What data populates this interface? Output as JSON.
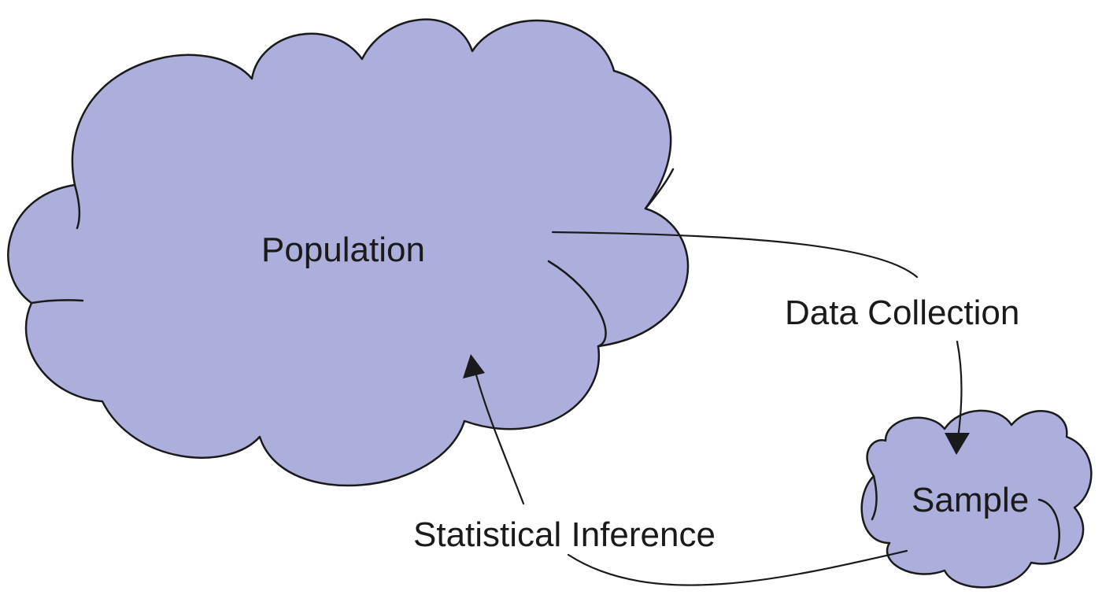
{
  "nodes": {
    "population": {
      "label": "Population"
    },
    "sample": {
      "label": "Sample"
    }
  },
  "edges": {
    "data_collection": {
      "label": "Data Collection"
    },
    "statistical_inference": {
      "label": "Statistical Inference"
    }
  },
  "colors": {
    "cloud_fill": "#acaedc",
    "outline": "#1a1a1a",
    "background": "#ffffff"
  }
}
